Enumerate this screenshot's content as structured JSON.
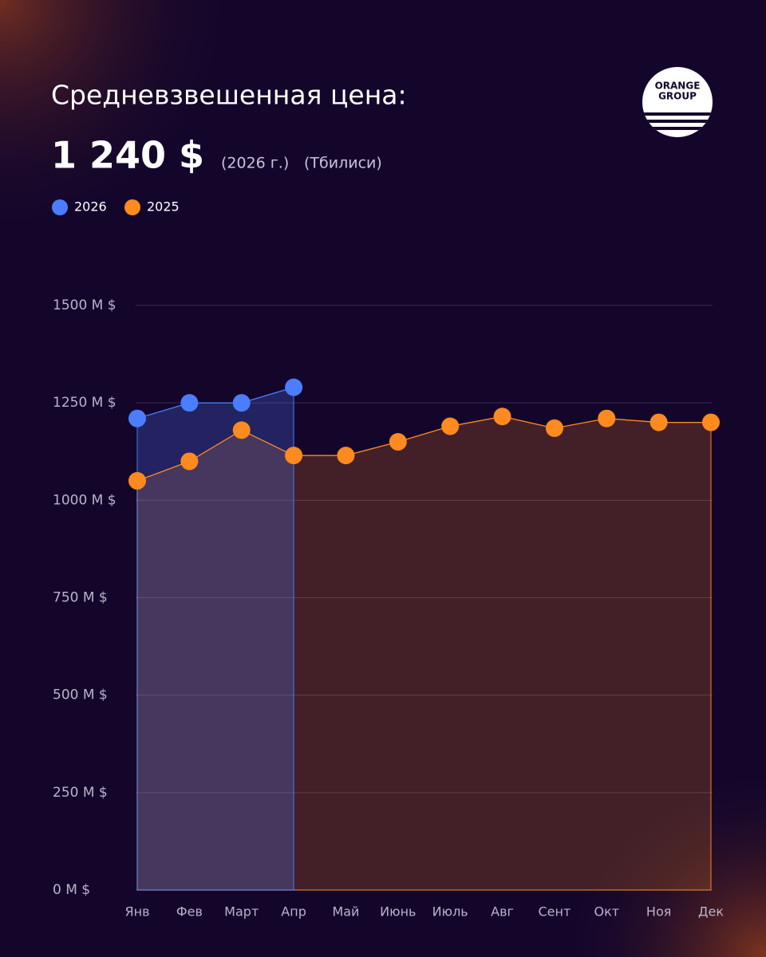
{
  "chart_data": {
    "type": "area",
    "title": "Средневзвешенная цена:",
    "headline": "1 240 $",
    "notes": [
      "(2026 г.)",
      "(Тбилиси)"
    ],
    "logo": [
      "ORANGE",
      "GROUP"
    ],
    "categories": [
      "Янв",
      "Фев",
      "Март",
      "Апр",
      "Май",
      "Июнь",
      "Июль",
      "Авг",
      "Сент",
      "Окт",
      "Ноя",
      "Дек"
    ],
    "series": [
      {
        "name": "2026",
        "color": "#4a7dff",
        "values": [
          1210,
          1250,
          1250,
          1290,
          null,
          null,
          null,
          null,
          null,
          null,
          null,
          null
        ]
      },
      {
        "name": "2025",
        "color": "#ff8a1f",
        "values": [
          1050,
          1100,
          1180,
          1115,
          1115,
          1150,
          1190,
          1215,
          1185,
          1210,
          1200,
          1200
        ]
      }
    ],
    "ylim": [
      0,
      1500
    ],
    "yticks": [
      {
        "value": 0,
        "label": "0 M $"
      },
      {
        "value": 250,
        "label": "250 M $"
      },
      {
        "value": 500,
        "label": "500 M $"
      },
      {
        "value": 750,
        "label": "750 M $"
      },
      {
        "value": 1000,
        "label": "1000 M $"
      },
      {
        "value": 1250,
        "label": "1250 M $"
      },
      {
        "value": 1500,
        "label": "1500 M $"
      }
    ],
    "grid": true
  }
}
